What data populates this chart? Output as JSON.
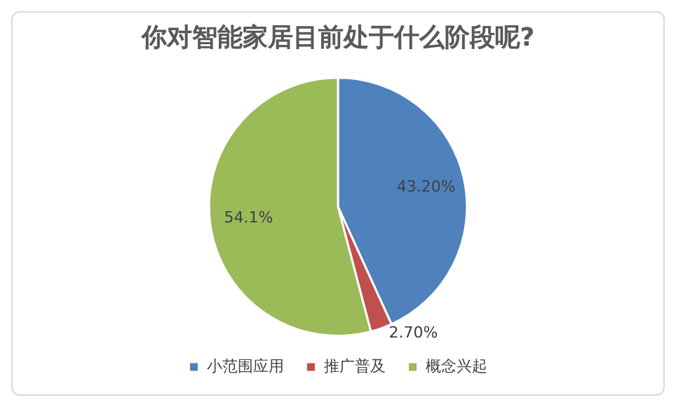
{
  "chart_data": {
    "type": "pie",
    "title": "你对智能家居目前处于什么阶段呢?",
    "categories": [
      "小范围应用",
      "推广普及",
      "概念兴起"
    ],
    "values": [
      43.2,
      2.7,
      54.1
    ],
    "colors": [
      "#4f81bd",
      "#c0504d",
      "#9bbb59"
    ],
    "value_labels": [
      "43.20%",
      "2.70%",
      "54.1%"
    ],
    "legend": "bottom"
  }
}
